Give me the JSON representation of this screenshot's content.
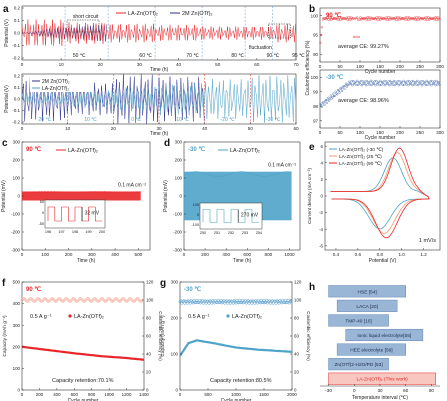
{
  "colors": {
    "red": "#e8262a",
    "navy": "#2b2f8f",
    "cyan": "#4ea3c9",
    "orange": "#f39a6b",
    "blue": "#3a62a7",
    "salmon_bar": "#f3b3a4",
    "blue_bar": "#9ab6d6",
    "pink_bar": "#f7c7c0"
  },
  "chart_data": [
    {
      "panel": "a",
      "type": "line",
      "legend": [
        "LA-Zn(OTf)₂",
        "2M Zn(OTf)₂"
      ],
      "annotations": [
        "short circuit",
        "fluctuation"
      ],
      "temperatures_top": [
        "50 ℃",
        "60 ℃",
        "70 ℃",
        "80 ℃",
        "90 ℃",
        "95 ℃"
      ],
      "temperatures_bottom": [
        "20 ℃",
        "10 ℃",
        "0 ℃",
        "-10 ℃",
        "-20 ℃",
        "-30 ℃"
      ],
      "xlabel": "Time (h)",
      "ylabel": "Potential (V)",
      "top_x_ticks": [
        "0",
        "10",
        "20",
        "30",
        "40",
        "50",
        "60",
        "70"
      ],
      "top_y_ticks": [
        "-0.2",
        "-0.1",
        "0.0",
        "0.1",
        "0.2"
      ],
      "bottom_x_ticks": [
        "0",
        "10",
        "20",
        "30",
        "40",
        "50",
        "60"
      ],
      "bottom_y_ticks": [
        "-0.2",
        "-0.1",
        "0.0",
        "0.1",
        "0.2"
      ],
      "top_xlim": [
        0,
        70
      ],
      "top_ylim": [
        -0.2,
        0.2
      ],
      "bottom_xlim": [
        0,
        60
      ],
      "bottom_ylim": [
        -0.2,
        0.2
      ],
      "top_segments_x": [
        0,
        11,
        22,
        34,
        46,
        57,
        64,
        70
      ],
      "top_red_amplitude": [
        0.1,
        0.08,
        0.07,
        0.06,
        0.05,
        0.05,
        0.07
      ],
      "top_blue_amplitude": [
        0.18,
        0.13,
        0.0,
        0.0,
        0.0,
        0.0,
        0.0
      ],
      "bottom_segments_x": [
        0,
        10,
        20,
        30,
        40,
        50,
        60
      ],
      "bottom_blue_amplitude": [
        0.18,
        0.13,
        0.2,
        0.18,
        0.0,
        0.0
      ],
      "bottom_cyan_amplitude": [
        0.05,
        0.07,
        0.1,
        0.13,
        0.16,
        0.19
      ]
    },
    {
      "panel": "b",
      "type": "scatter",
      "top_label": "90 ℃",
      "top_avg": "average CE: 99.27%",
      "bottom_label": "-30 ℃",
      "bottom_avg": "average CE: 98.96%",
      "xlabel": "Cycle number",
      "ylabel": "Coulombic efficiency (%)",
      "x_ticks": [
        "0",
        "50",
        "100",
        "150",
        "200",
        "250",
        "300"
      ],
      "top_y_ticks": [
        "90",
        "95",
        "100"
      ],
      "bottom_y_ticks": [
        "97",
        "98",
        "99",
        "100"
      ],
      "xlim": [
        0,
        300
      ],
      "top_ylim": [
        88,
        102
      ],
      "bottom_ylim": [
        96.5,
        100.5
      ],
      "top_mean": 99.27,
      "bottom_mean": 98.96
    },
    {
      "panel": "c",
      "type": "line",
      "temperature": "90 ℃",
      "legend": [
        "LA-Zn(OTf)₂"
      ],
      "current": "0.1 mA cm⁻²",
      "xlabel": "Time (h)",
      "ylabel": "Potential (mV)",
      "x_ticks": [
        "0",
        "100",
        "200",
        "300",
        "400",
        "500"
      ],
      "y_ticks": [
        "-300",
        "-200",
        "-100",
        "0",
        "100",
        "200",
        "300"
      ],
      "xlim": [
        0,
        550
      ],
      "ylim": [
        -300,
        300
      ],
      "amplitude": 25,
      "inset_value": "32 mV",
      "inset_x_ticks": [
        "196",
        "197",
        "198",
        "199",
        "200"
      ],
      "inset_y_ticks": [
        "-50",
        "0",
        "50"
      ]
    },
    {
      "panel": "d",
      "type": "line",
      "temperature": "-30 ℃",
      "legend": [
        "LA-Zn(OTf)₂"
      ],
      "current": "0.1 mA cm⁻²",
      "xlabel": "Time (h)",
      "ylabel": "Potential (mV)",
      "x_ticks": [
        "0",
        "200",
        "400",
        "600",
        "800",
        "1000"
      ],
      "y_ticks": [
        "-300",
        "-200",
        "-100",
        "0",
        "100",
        "200",
        "300"
      ],
      "xlim": [
        0,
        1100
      ],
      "ylim": [
        -300,
        300
      ],
      "amplitude": 135,
      "inset_value": "270 mV",
      "inset_x_ticks": [
        "250",
        "251",
        "252",
        "253",
        "254"
      ],
      "inset_y_ticks": [
        "-100",
        "0",
        "100"
      ]
    },
    {
      "panel": "e",
      "type": "line",
      "legend": [
        "LA-Zn(OTf)₂ (-30 ℃)",
        "LA-Zn(OTf)₂ (25 ℃)",
        "LA-Zn(OTf)₂ (90 ℃)"
      ],
      "scan": "1 mV/s",
      "xlabel": "Potential (V)",
      "ylabel": "Current density (mA cm⁻²)",
      "x_ticks": [
        "0.4",
        "0.6",
        "0.8",
        "1.0",
        "1.2"
      ],
      "y_ticks": [
        "-6",
        "-4",
        "-2",
        "0",
        "2",
        "4",
        "6"
      ],
      "xlim": [
        0.3,
        1.35
      ],
      "ylim": [
        -6.5,
        6.5
      ]
    },
    {
      "panel": "f",
      "type": "line",
      "temperature": "90 ℃",
      "current": "0.5 A g⁻¹",
      "legend": [
        "LA-Zn(OTf)₂"
      ],
      "retention": "Capacity retention:70.1%",
      "xlabel": "Cycle number",
      "ylabel": "Capacity (mAh g⁻¹)",
      "y2label": "Coulombic efficiency (%)",
      "x_ticks": [
        "0",
        "200",
        "400",
        "600",
        "800",
        "1000",
        "1200",
        "1400"
      ],
      "y_ticks": [
        "0",
        "100",
        "200",
        "300",
        "400",
        "500"
      ],
      "y2_ticks": [
        "0",
        "20",
        "40",
        "60",
        "80",
        "100",
        "120"
      ],
      "xlim": [
        0,
        1400
      ],
      "ylim": [
        0,
        500
      ],
      "capacity_points": [
        [
          0,
          200
        ],
        [
          100,
          195
        ],
        [
          300,
          185
        ],
        [
          600,
          170
        ],
        [
          900,
          157
        ],
        [
          1200,
          148
        ],
        [
          1400,
          140
        ]
      ],
      "ce_value_pct": 100
    },
    {
      "panel": "g",
      "type": "line",
      "temperature": "-30 ℃",
      "current": "0.5 A g⁻¹",
      "legend": [
        "LA-Zn(OTf)₂"
      ],
      "retention": "Capacity retention:80.5%",
      "xlabel": "Cycle number",
      "ylabel": "Capacity (mAh g⁻¹)",
      "y2label": "Coulombic efficiency (%)",
      "x_ticks": [
        "0",
        "500",
        "1000",
        "1500",
        "2000"
      ],
      "y_ticks": [
        "0",
        "100",
        "200",
        "300"
      ],
      "y2_ticks": [
        "0",
        "20",
        "40",
        "60",
        "80",
        "100",
        "120"
      ],
      "xlim": [
        0,
        2000
      ],
      "ylim": [
        0,
        300
      ],
      "capacity_points": [
        [
          0,
          95
        ],
        [
          150,
          130
        ],
        [
          300,
          138
        ],
        [
          600,
          130
        ],
        [
          1000,
          118
        ],
        [
          1400,
          112
        ],
        [
          2000,
          106
        ]
      ],
      "ce_value_pct": 98
    },
    {
      "panel": "h",
      "type": "bar",
      "categories": [
        "HSE [54]",
        "LACA [20]",
        "TMP-40 [10]",
        "Ionic liquid electrolyte[55]",
        "HEE electrolyte [56]",
        "Zn(OTf)2-H2O/PD [53]",
        "LA-Zn(OTf)₂ (This work)"
      ],
      "ranges": [
        [
          -30,
          60
        ],
        [
          -20,
          50
        ],
        [
          -30,
          40
        ],
        [
          -10,
          80
        ],
        [
          -20,
          60
        ],
        [
          -30,
          40
        ],
        [
          -30,
          95
        ]
      ],
      "xlabel": "Temperature interval (℃)",
      "x_ticks": [
        "-30",
        "0",
        "30",
        "60",
        "90"
      ],
      "xlim": [
        -40,
        100
      ]
    }
  ]
}
